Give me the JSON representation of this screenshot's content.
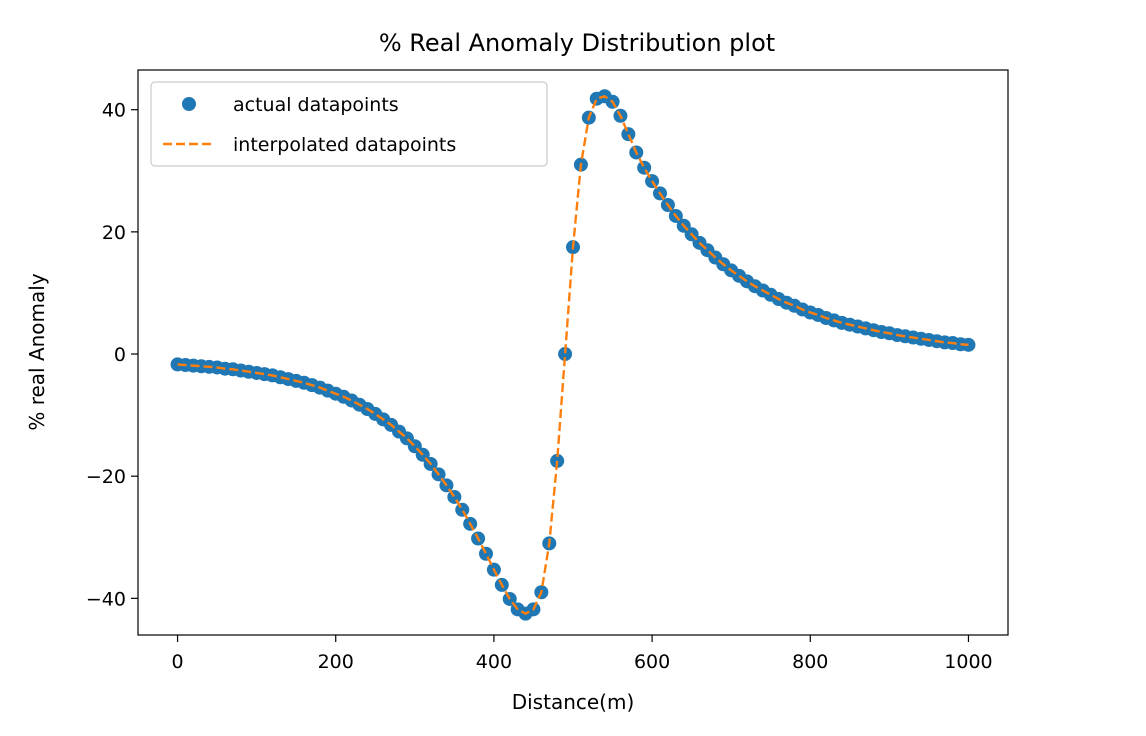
{
  "chart_data": {
    "type": "scatter",
    "title": "% Real Anomaly Distribution plot",
    "xlabel": "Distance(m)",
    "ylabel": "% real Anomaly",
    "xlim": [
      -50,
      1050
    ],
    "ylim": [
      -46,
      46.5
    ],
    "xticks": [
      0,
      200,
      400,
      600,
      800,
      1000
    ],
    "xtick_labels": [
      "0",
      "200",
      "400",
      "600",
      "800",
      "1000"
    ],
    "yticks": [
      -40,
      -20,
      0,
      20,
      40
    ],
    "ytick_labels": [
      "−40",
      "−20",
      "0",
      "20",
      "40"
    ],
    "grid": false,
    "legend_position": "top-left",
    "series": [
      {
        "name": "actual datapoints",
        "style": "markers",
        "color": "#1f77b4",
        "x": [
          0,
          10,
          20,
          30,
          40,
          50,
          60,
          70,
          80,
          90,
          100,
          110,
          120,
          130,
          140,
          150,
          160,
          170,
          180,
          190,
          200,
          210,
          220,
          230,
          240,
          250,
          260,
          270,
          280,
          290,
          300,
          310,
          320,
          330,
          340,
          350,
          360,
          370,
          380,
          390,
          400,
          410,
          420,
          430,
          440,
          450,
          460,
          470,
          480,
          490,
          500,
          510,
          520,
          530,
          540,
          550,
          560,
          570,
          580,
          590,
          600,
          610,
          620,
          630,
          640,
          650,
          660,
          670,
          680,
          690,
          700,
          710,
          720,
          730,
          740,
          750,
          760,
          770,
          780,
          790,
          800,
          810,
          820,
          830,
          840,
          850,
          860,
          870,
          880,
          890,
          900,
          910,
          920,
          930,
          940,
          950,
          960,
          970,
          980,
          990,
          1000
        ],
        "y": [
          -1.7,
          -1.8,
          -1.9,
          -2.0,
          -2.1,
          -2.2,
          -2.4,
          -2.5,
          -2.7,
          -2.9,
          -3.1,
          -3.3,
          -3.5,
          -3.8,
          -4.1,
          -4.4,
          -4.7,
          -5.1,
          -5.5,
          -6.0,
          -6.5,
          -7.0,
          -7.6,
          -8.3,
          -9.0,
          -9.8,
          -10.7,
          -11.6,
          -12.7,
          -13.8,
          -15.1,
          -16.5,
          -18.0,
          -19.7,
          -21.5,
          -23.4,
          -25.5,
          -27.8,
          -30.2,
          -32.7,
          -35.3,
          -37.8,
          -40.1,
          -41.8,
          -42.5,
          -41.8,
          -39.0,
          -31.0,
          -17.5,
          0.0,
          17.5,
          31.0,
          38.7,
          41.8,
          42.2,
          41.3,
          39.0,
          36.0,
          33.0,
          30.5,
          28.3,
          26.3,
          24.4,
          22.6,
          21.0,
          19.6,
          18.2,
          17.0,
          15.8,
          14.7,
          13.7,
          12.8,
          11.9,
          11.1,
          10.4,
          9.7,
          9.0,
          8.4,
          7.9,
          7.3,
          6.8,
          6.4,
          5.9,
          5.5,
          5.1,
          4.8,
          4.5,
          4.2,
          3.9,
          3.6,
          3.4,
          3.1,
          2.9,
          2.7,
          2.5,
          2.3,
          2.1,
          1.9,
          1.8,
          1.6,
          1.5
        ]
      },
      {
        "name": "interpolated datapoints",
        "style": "dashed-line",
        "color": "#ff7f0e",
        "x": [
          0,
          10,
          20,
          30,
          40,
          50,
          60,
          70,
          80,
          90,
          100,
          110,
          120,
          130,
          140,
          150,
          160,
          170,
          180,
          190,
          200,
          210,
          220,
          230,
          240,
          250,
          260,
          270,
          280,
          290,
          300,
          310,
          320,
          330,
          340,
          350,
          360,
          370,
          380,
          390,
          400,
          410,
          420,
          430,
          440,
          450,
          460,
          470,
          480,
          490,
          500,
          510,
          520,
          530,
          540,
          550,
          560,
          570,
          580,
          590,
          600,
          610,
          620,
          630,
          640,
          650,
          660,
          670,
          680,
          690,
          700,
          710,
          720,
          730,
          740,
          750,
          760,
          770,
          780,
          790,
          800,
          810,
          820,
          830,
          840,
          850,
          860,
          870,
          880,
          890,
          900,
          910,
          920,
          930,
          940,
          950,
          960,
          970,
          980,
          990,
          1000
        ],
        "y": [
          -1.7,
          -1.8,
          -1.9,
          -2.0,
          -2.1,
          -2.2,
          -2.4,
          -2.5,
          -2.7,
          -2.9,
          -3.1,
          -3.3,
          -3.5,
          -3.8,
          -4.1,
          -4.4,
          -4.7,
          -5.1,
          -5.5,
          -6.0,
          -6.5,
          -7.0,
          -7.6,
          -8.3,
          -9.0,
          -9.8,
          -10.7,
          -11.6,
          -12.7,
          -13.8,
          -15.1,
          -16.5,
          -18.0,
          -19.7,
          -21.5,
          -23.4,
          -25.5,
          -27.8,
          -30.2,
          -32.7,
          -35.3,
          -37.8,
          -40.1,
          -41.8,
          -42.5,
          -41.8,
          -39.0,
          -31.0,
          -17.5,
          0.0,
          17.5,
          31.0,
          38.7,
          41.8,
          42.2,
          41.3,
          39.0,
          36.0,
          33.0,
          30.5,
          28.3,
          26.3,
          24.4,
          22.6,
          21.0,
          19.6,
          18.2,
          17.0,
          15.8,
          14.7,
          13.7,
          12.8,
          11.9,
          11.1,
          10.4,
          9.7,
          9.0,
          8.4,
          7.9,
          7.3,
          6.8,
          6.4,
          5.9,
          5.5,
          5.1,
          4.8,
          4.5,
          4.2,
          3.9,
          3.6,
          3.4,
          3.1,
          2.9,
          2.7,
          2.5,
          2.3,
          2.1,
          1.9,
          1.8,
          1.6,
          1.5
        ]
      }
    ]
  }
}
